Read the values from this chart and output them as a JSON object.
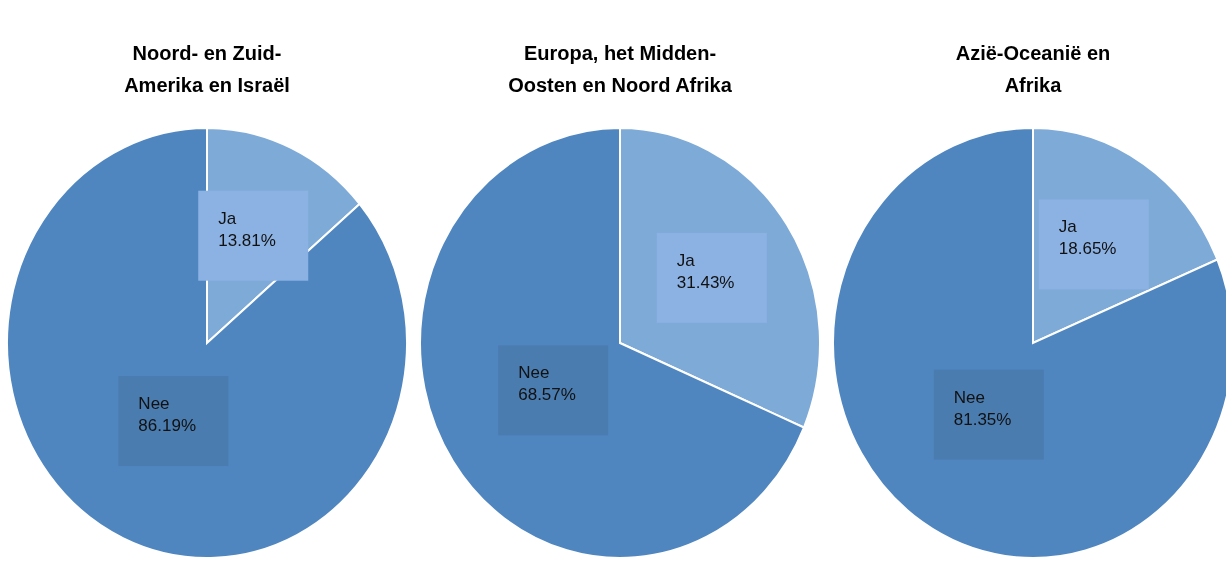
{
  "chart_data": [
    {
      "type": "pie",
      "title": "Noord- en Zuid-Amerika en Israël",
      "categories": [
        "Ja",
        "Nee"
      ],
      "values": [
        13.81,
        86.19
      ],
      "value_labels": [
        "13.81%",
        "86.19%"
      ],
      "colors": [
        "#7eaad8",
        "#4f86c0"
      ]
    },
    {
      "type": "pie",
      "title": "Europa, het Midden-Oosten en Noord Afrika",
      "categories": [
        "Ja",
        "Nee"
      ],
      "values": [
        31.43,
        68.57
      ],
      "value_labels": [
        "31.43%",
        "68.57%"
      ],
      "colors": [
        "#7eaad8",
        "#4f86c0"
      ]
    },
    {
      "type": "pie",
      "title": "Azië-Oceanië en Afrika",
      "categories": [
        "Ja",
        "Nee"
      ],
      "values": [
        18.65,
        81.35
      ],
      "value_labels": [
        "18.65%",
        "81.35%"
      ],
      "colors": [
        "#7eaad8",
        "#4f86c0"
      ]
    }
  ]
}
